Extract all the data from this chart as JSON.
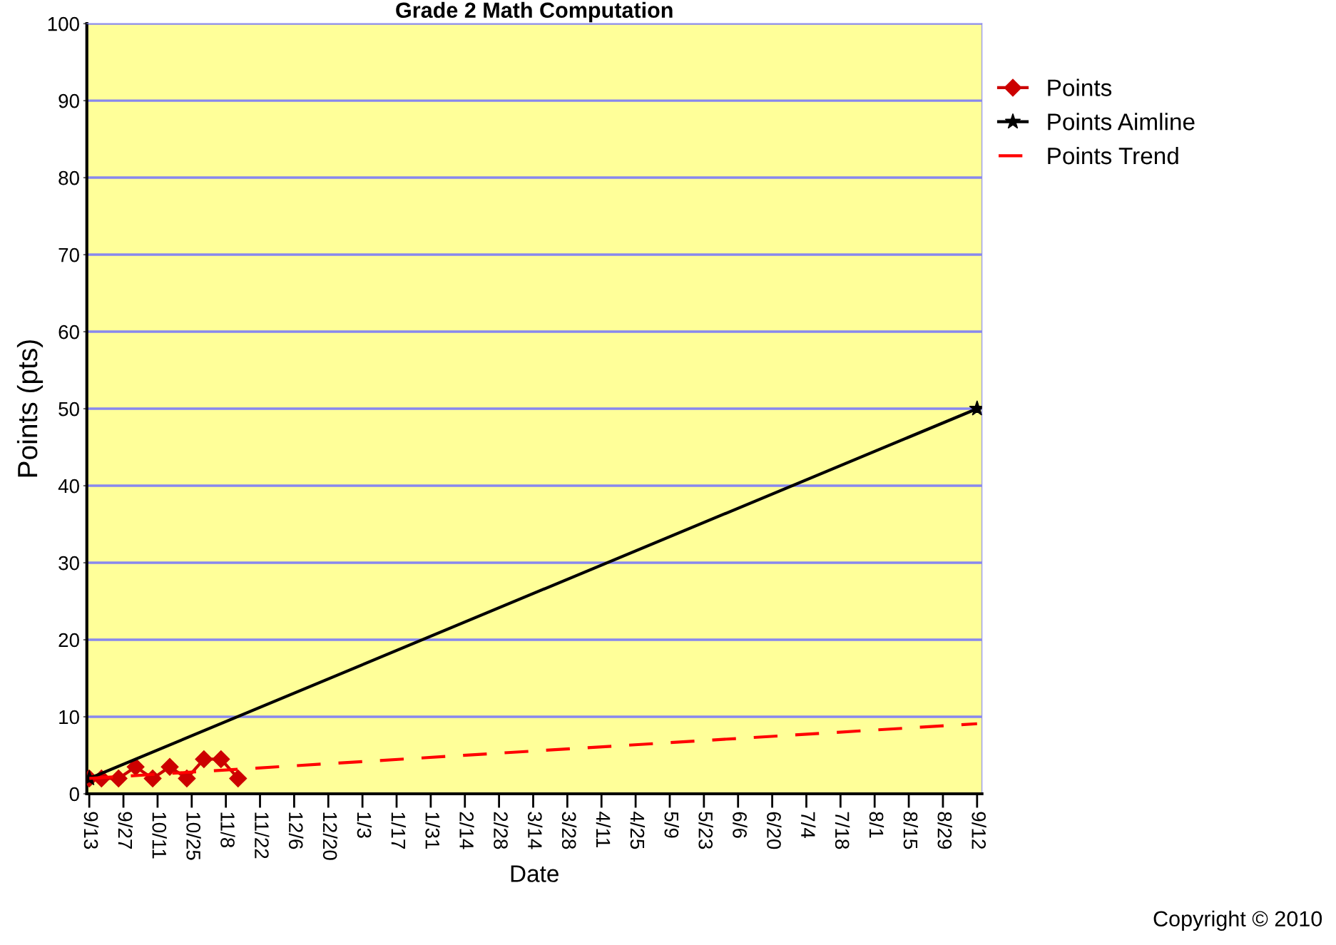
{
  "chart_data": {
    "type": "line",
    "title": "Grade 2 Math Computation",
    "xlabel": "Date",
    "ylabel": "Points (pts)",
    "annotations": [
      "Copyright © 2010"
    ],
    "xlim": [
      "2010-09-12",
      "2011-09-14"
    ],
    "ylim": [
      0,
      100
    ],
    "yticks": [
      0,
      10,
      20,
      30,
      40,
      50,
      60,
      70,
      80,
      90,
      100
    ],
    "xticks": [
      {
        "value": "2010-09-13",
        "label": "9/13"
      },
      {
        "value": "2010-09-27",
        "label": "9/27"
      },
      {
        "value": "2010-10-11",
        "label": "10/11"
      },
      {
        "value": "2010-10-25",
        "label": "10/25"
      },
      {
        "value": "2010-11-08",
        "label": "11/8"
      },
      {
        "value": "2010-11-22",
        "label": "11/22"
      },
      {
        "value": "2010-12-06",
        "label": "12/6"
      },
      {
        "value": "2010-12-20",
        "label": "12/20"
      },
      {
        "value": "2011-01-03",
        "label": "1/3"
      },
      {
        "value": "2011-01-17",
        "label": "1/17"
      },
      {
        "value": "2011-01-31",
        "label": "1/31"
      },
      {
        "value": "2011-02-14",
        "label": "2/14"
      },
      {
        "value": "2011-02-28",
        "label": "2/28"
      },
      {
        "value": "2011-03-14",
        "label": "3/14"
      },
      {
        "value": "2011-03-28",
        "label": "3/28"
      },
      {
        "value": "2011-04-11",
        "label": "4/11"
      },
      {
        "value": "2011-04-25",
        "label": "4/25"
      },
      {
        "value": "2011-05-09",
        "label": "5/9"
      },
      {
        "value": "2011-05-23",
        "label": "5/23"
      },
      {
        "value": "2011-06-06",
        "label": "6/6"
      },
      {
        "value": "2011-06-20",
        "label": "6/20"
      },
      {
        "value": "2011-07-04",
        "label": "7/4"
      },
      {
        "value": "2011-07-18",
        "label": "7/18"
      },
      {
        "value": "2011-08-01",
        "label": "8/1"
      },
      {
        "value": "2011-08-15",
        "label": "8/15"
      },
      {
        "value": "2011-08-29",
        "label": "8/29"
      },
      {
        "value": "2011-09-12",
        "label": "9/12"
      }
    ],
    "grid": "y",
    "legend": "top right",
    "series": [
      {
        "name": "Points",
        "color": "#cc0000",
        "marker": "diamond",
        "line_style": "solid",
        "x": [
          "2010-09-13",
          "2010-09-18",
          "2010-09-25",
          "2010-10-02",
          "2010-10-09",
          "2010-10-16",
          "2010-10-23",
          "2010-10-30",
          "2010-11-06",
          "2010-11-13"
        ],
        "values": [
          2,
          2,
          2,
          3.5,
          2,
          3.5,
          2,
          4.5,
          4.5,
          2
        ]
      },
      {
        "name": "Points Aimline",
        "color": "#000000",
        "marker": "star",
        "line_style": "solid",
        "x": [
          "2010-09-13",
          "2011-09-12"
        ],
        "values": [
          2,
          50
        ]
      },
      {
        "name": "Points Trend",
        "color": "#ff0000",
        "marker": "none",
        "line_style": "dashed",
        "x": [
          "2010-09-13",
          "2011-09-12"
        ],
        "values": [
          2,
          9.1
        ]
      }
    ]
  }
}
